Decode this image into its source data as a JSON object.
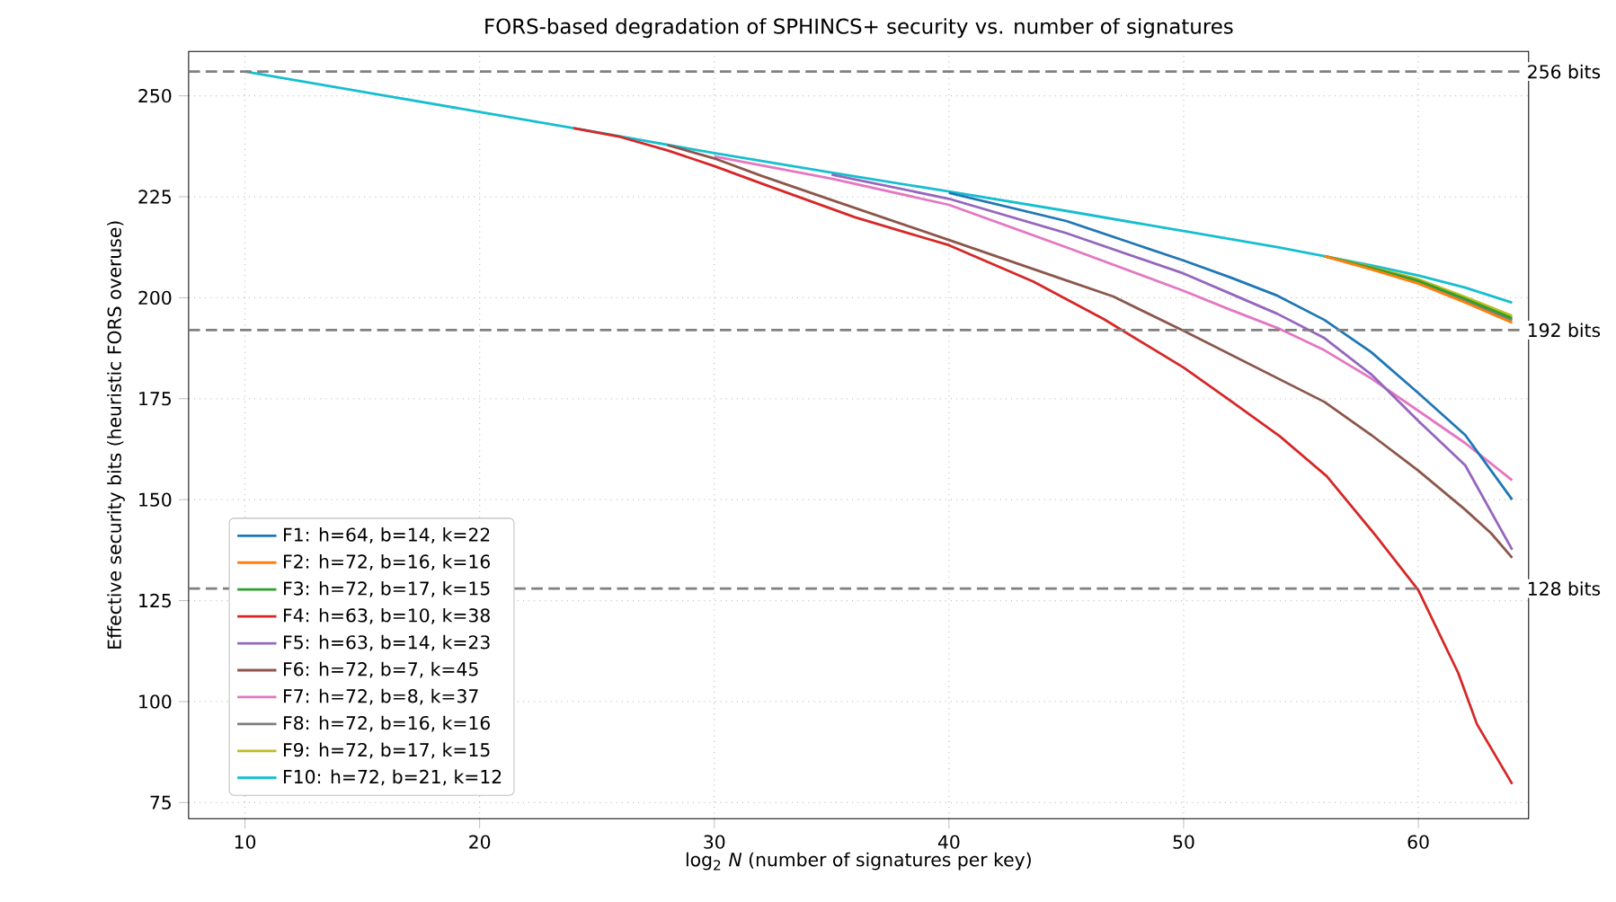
{
  "chart_data": {
    "type": "line",
    "title": "FORS-based degradation of SPHINCS+ security vs. number of signatures",
    "xlabel": "log$_{2}$ *N*  (number of signatures per key)",
    "ylabel": "Effective security bits (heuristic FORS overuse)",
    "xlim": [
      7.6,
      64.7
    ],
    "ylim": [
      71,
      261
    ],
    "xticks": [
      10,
      20,
      30,
      40,
      50,
      60
    ],
    "yticks": [
      75,
      100,
      125,
      150,
      175,
      200,
      225,
      250
    ],
    "grid": true,
    "legend": "bottom left",
    "line_style": "solid",
    "series": [
      {
        "name": "F1: h=64, b=14, k=22",
        "color": "#1f77b4",
        "x": [
          40,
          45,
          50,
          52,
          54,
          56,
          58,
          60,
          62,
          64
        ],
        "values": [
          226,
          219,
          209.2,
          205,
          200.5,
          194.5,
          186.5,
          176.4,
          166,
          150
        ]
      },
      {
        "name": "F2: h=72, b=16, k=16",
        "color": "#ff7f0e",
        "x": [
          56,
          58,
          60,
          62,
          64
        ],
        "values": [
          210.3,
          207,
          203.5,
          198.8,
          193.8
        ]
      },
      {
        "name": "F3: h=72, b=17, k=15",
        "color": "#2ca02c",
        "x": [
          56,
          58,
          60,
          62,
          64
        ],
        "values": [
          210.3,
          207.4,
          204.2,
          199.7,
          194.9
        ]
      },
      {
        "name": "F4: h=63, b=10, k=38",
        "color": "#d62728",
        "x": [
          24,
          26,
          28,
          30,
          32,
          36,
          40,
          43.6,
          46.6,
          50,
          52,
          54.1,
          56.1,
          58.2,
          60,
          61.7,
          62.5,
          64
        ],
        "values": [
          242,
          239.8,
          236.5,
          232.6,
          228.3,
          219.9,
          213,
          204,
          194.7,
          182.7,
          174.5,
          165.7,
          155.8,
          141,
          127.6,
          107.1,
          94.4,
          79.6
        ]
      },
      {
        "name": "F5: h=63, b=14, k=23",
        "color": "#9467bd",
        "x": [
          35,
          40,
          45,
          50,
          52,
          54,
          56,
          58,
          60,
          62,
          64
        ],
        "values": [
          230.5,
          224.5,
          216,
          206,
          201,
          196,
          190,
          181,
          169.5,
          158.5,
          137.6
        ]
      },
      {
        "name": "F6: h=72, b=7, k=45",
        "color": "#8c564b",
        "x": [
          28,
          30,
          32,
          35,
          40,
          45,
          47,
          50,
          53,
          56,
          58,
          60,
          62,
          63.1,
          64
        ],
        "values": [
          237.8,
          234.5,
          230.2,
          224.2,
          214.3,
          204.3,
          200.3,
          191.8,
          183,
          174.2,
          166,
          157.2,
          147.5,
          141.7,
          135.6
        ]
      },
      {
        "name": "F7: h=72, b=8, k=37",
        "color": "#e377c2",
        "x": [
          30,
          35,
          40,
          45,
          50,
          52,
          54,
          56,
          58,
          60,
          62,
          64
        ],
        "values": [
          235,
          229.5,
          223,
          212.5,
          201.7,
          197,
          192.5,
          187,
          180,
          172,
          164,
          154.8
        ]
      },
      {
        "name": "F8: h=72, b=16, k=16",
        "color": "#7f7f7f",
        "x": [
          56,
          58,
          60,
          62,
          64
        ],
        "values": [
          210.3,
          207.2,
          203.8,
          199.2,
          194.4
        ]
      },
      {
        "name": "F9: h=72, b=17, k=15",
        "color": "#bcbd22",
        "x": [
          56,
          58,
          60,
          62,
          64
        ],
        "values": [
          210.3,
          207.6,
          204.6,
          200.2,
          195.5
        ]
      },
      {
        "name": "F10: h=72, b=21, k=12",
        "color": "#17becf",
        "x": [
          10,
          15,
          20,
          25,
          30,
          35,
          40,
          45,
          50,
          52,
          54,
          56,
          58,
          60,
          62,
          64
        ],
        "values": [
          256,
          251,
          246,
          241,
          235.8,
          231,
          226.3,
          221.5,
          216.5,
          214.5,
          212.5,
          210.3,
          208,
          205.5,
          202.5,
          198.8
        ]
      }
    ],
    "ref_lines": [
      {
        "axis": "y",
        "value": 256,
        "label": "256 bits",
        "color": "#808080",
        "line_style": "dashed"
      },
      {
        "axis": "y",
        "value": 192,
        "label": "192 bits",
        "color": "#808080",
        "line_style": "dashed"
      },
      {
        "axis": "y",
        "value": 128,
        "label": "128 bits",
        "color": "#808080",
        "line_style": "dashed"
      }
    ]
  }
}
